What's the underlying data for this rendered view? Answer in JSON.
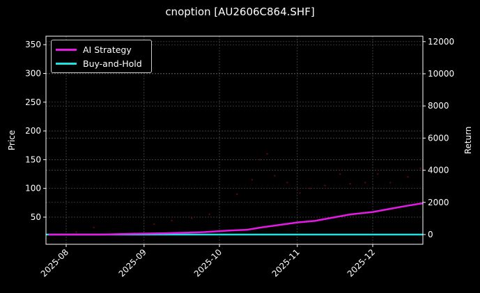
{
  "title": "cnoption [AU2606C864.SHF]",
  "legend": [
    {
      "label": "AI Strategy",
      "color": "#e619e6"
    },
    {
      "label": "Buy-and-Hold",
      "color": "#22e0e0"
    }
  ],
  "axes": {
    "left_label": "Price",
    "right_label": "Return",
    "left_ticks": [
      "50",
      "100",
      "150",
      "200",
      "250",
      "300",
      "350"
    ],
    "right_ticks": [
      "0",
      "2000",
      "4000",
      "6000",
      "8000",
      "10000",
      "12000"
    ],
    "x_ticks": [
      "2025-08",
      "2025-09",
      "2025-10",
      "2025-11",
      "2025-12"
    ]
  },
  "chart_data": {
    "type": "line",
    "title": "cnoption [AU2606C864.SHF]",
    "xlabel": "",
    "ylabel": "Price",
    "ylabel_right": "Return",
    "ylim": [
      5,
      365
    ],
    "ylim_right": [
      -600,
      12300
    ],
    "x_ticks": [
      "2025-08",
      "2025-09",
      "2025-10",
      "2025-11",
      "2025-12"
    ],
    "grid": true,
    "legend_position": "upper left",
    "series": [
      {
        "name": "AI Strategy",
        "axis": "right",
        "color": "#e619e6",
        "x": [
          "2025-07-25",
          "2025-08-15",
          "2025-08-28",
          "2025-09-10",
          "2025-09-25",
          "2025-10-05",
          "2025-10-12",
          "2025-10-18",
          "2025-10-25",
          "2025-11-01",
          "2025-11-08",
          "2025-11-15",
          "2025-11-22",
          "2025-12-01",
          "2025-12-08",
          "2025-12-15",
          "2025-12-22"
        ],
        "values": [
          0,
          0,
          50,
          80,
          150,
          250,
          300,
          450,
          600,
          750,
          850,
          1050,
          1250,
          1400,
          1600,
          1800,
          1950
        ]
      },
      {
        "name": "Buy-and-Hold",
        "axis": "right",
        "color": "#22e0e0",
        "x": [
          "2025-07-25",
          "2025-12-22"
        ],
        "values": [
          0,
          0
        ]
      },
      {
        "name": "Price",
        "axis": "left",
        "type": "scatter",
        "color": "#5a0a0a",
        "x": [
          "2025-08-05",
          "2025-08-12",
          "2025-08-28",
          "2025-09-05",
          "2025-09-12",
          "2025-09-20",
          "2025-09-27",
          "2025-10-08",
          "2025-10-14",
          "2025-10-17",
          "2025-10-20",
          "2025-10-23",
          "2025-10-28",
          "2025-11-02",
          "2025-11-06",
          "2025-11-12",
          "2025-11-18",
          "2025-11-22",
          "2025-11-28",
          "2025-12-03",
          "2025-12-08",
          "2025-12-15",
          "2025-12-20"
        ],
        "values": [
          24,
          32,
          22,
          38,
          44,
          48,
          55,
          90,
          115,
          150,
          160,
          122,
          110,
          92,
          100,
          105,
          125,
          108,
          110,
          125,
          110,
          120,
          135
        ]
      }
    ]
  }
}
